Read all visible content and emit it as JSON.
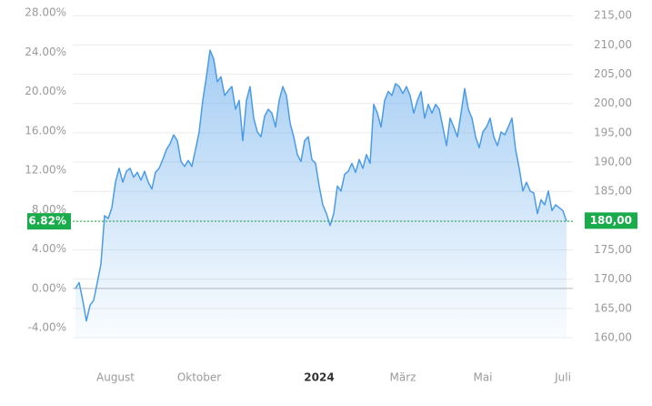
{
  "chart_data": {
    "type": "line",
    "ylim": [
      -5,
      28
    ],
    "yticks": [
      {
        "value": 28,
        "label": "28.00%"
      },
      {
        "value": 24,
        "label": "24.00%"
      },
      {
        "value": 20,
        "label": "20.00%"
      },
      {
        "value": 16,
        "label": "16.00%"
      },
      {
        "value": 12,
        "label": "12.00%"
      },
      {
        "value": 8,
        "label": "8.00%"
      },
      {
        "value": 4,
        "label": "4.00%"
      },
      {
        "value": 0,
        "label": "0.00%"
      },
      {
        "value": -4,
        "label": "-4.00%"
      }
    ],
    "y2lim": [
      160,
      215.5
    ],
    "y2ticks": [
      {
        "value": 215,
        "label": "215,00"
      },
      {
        "value": 210,
        "label": "210,00"
      },
      {
        "value": 205,
        "label": "205,00"
      },
      {
        "value": 200,
        "label": "200,00"
      },
      {
        "value": 195,
        "label": "195,00"
      },
      {
        "value": 190,
        "label": "190,00"
      },
      {
        "value": 185,
        "label": "185,00"
      },
      {
        "value": 180,
        "label": "180,00"
      },
      {
        "value": 175,
        "label": "175,00"
      },
      {
        "value": 170,
        "label": "170,00"
      },
      {
        "value": 165,
        "label": "165,00"
      },
      {
        "value": 160,
        "label": "160,00"
      }
    ],
    "xlim": [
      0,
      136
    ],
    "xticks": [
      {
        "value": 11,
        "label": "August"
      },
      {
        "value": 34,
        "label": "Oktober"
      },
      {
        "value": 67,
        "label": "2024"
      },
      {
        "value": 90,
        "label": "März"
      },
      {
        "value": 112,
        "label": "Mai"
      },
      {
        "value": 134,
        "label": "Juli"
      }
    ],
    "grid": true,
    "current": {
      "value": 6.82,
      "label": "6.82%",
      "color": "#1aab4b"
    },
    "current_price": {
      "value": 180,
      "label": "180,00"
    },
    "series": [
      {
        "color": "#4a9be8",
        "values": [
          0,
          0.6,
          -1.2,
          -3.3,
          -1.7,
          -1.2,
          0.6,
          2.5,
          7.4,
          7.1,
          8.2,
          10.8,
          12.2,
          10.8,
          11.9,
          12.2,
          11.3,
          11.8,
          11.0,
          11.9,
          10.8,
          10.1,
          11.8,
          12.2,
          13.1,
          14.1,
          14.7,
          15.6,
          15.0,
          12.9,
          12.4,
          13.0,
          12.4,
          14.1,
          15.9,
          19.1,
          21.5,
          24.2,
          23.3,
          21.0,
          21.5,
          19.6,
          20.1,
          20.5,
          18.2,
          19.1,
          15.0,
          19.1,
          20.5,
          17.3,
          15.9,
          15.4,
          17.5,
          18.2,
          17.8,
          16.4,
          19.1,
          20.5,
          19.6,
          16.8,
          15.4,
          13.6,
          12.9,
          15.0,
          15.4,
          13.1,
          12.7,
          10.4,
          8.5,
          7.6,
          6.4,
          7.6,
          10.4,
          9.9,
          11.6,
          11.9,
          12.7,
          11.8,
          13.1,
          12.2,
          13.6,
          12.7,
          18.7,
          17.8,
          16.4,
          19.1,
          20.0,
          19.6,
          20.8,
          20.5,
          19.8,
          20.5,
          19.6,
          17.8,
          19.1,
          20.0,
          17.3,
          18.7,
          17.8,
          18.7,
          18.2,
          16.4,
          14.5,
          17.3,
          16.4,
          15.4,
          17.8,
          20.3,
          18.2,
          17.3,
          15.4,
          14.3,
          15.9,
          16.4,
          17.3,
          15.4,
          14.5,
          15.9,
          15.6,
          16.4,
          17.3,
          14.1,
          12.2,
          9.9,
          10.8,
          9.9,
          9.7,
          7.6,
          9.0,
          8.5,
          9.9,
          7.9,
          8.5,
          8.2,
          7.9,
          6.82
        ]
      }
    ]
  }
}
